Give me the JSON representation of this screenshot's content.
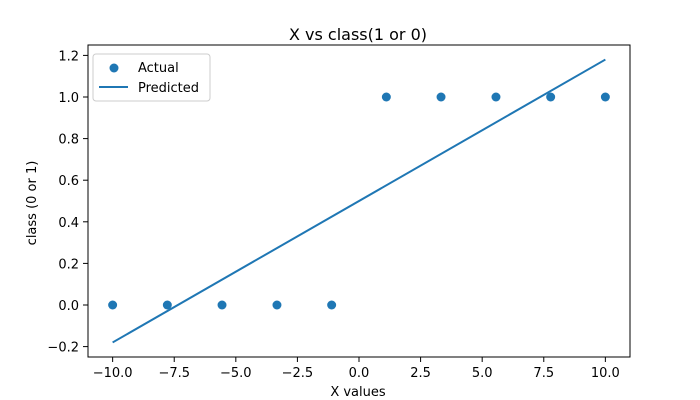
{
  "chart_data": {
    "type": "scatter",
    "title": "X vs class(1 or 0)",
    "xlabel": "X values",
    "ylabel": "class (0 or 1)",
    "xlim": [
      -11.0,
      11.0
    ],
    "ylim": [
      -0.25,
      1.25
    ],
    "xticks": [
      -10.0,
      -7.5,
      -5.0,
      -2.5,
      0.0,
      2.5,
      5.0,
      7.5,
      10.0
    ],
    "xtick_labels": [
      "−10.0",
      "−7.5",
      "−5.0",
      "−2.5",
      "0.0",
      "2.5",
      "5.0",
      "7.5",
      "10.0"
    ],
    "yticks": [
      -0.2,
      0.0,
      0.2,
      0.4,
      0.6,
      0.8,
      1.0,
      1.2
    ],
    "ytick_labels": [
      "−0.2",
      "0.0",
      "0.2",
      "0.4",
      "0.6",
      "0.8",
      "1.0",
      "1.2"
    ],
    "grid": false,
    "legend_position": "upper-left",
    "color": "#1f77b4",
    "series": [
      {
        "name": "Actual",
        "kind": "scatter",
        "x": [
          -10.0,
          -7.78,
          -5.56,
          -3.33,
          -1.11,
          1.11,
          3.33,
          5.56,
          7.78,
          10.0
        ],
        "y": [
          0,
          0,
          0,
          0,
          0,
          1,
          1,
          1,
          1,
          1
        ]
      },
      {
        "name": "Predicted",
        "kind": "line",
        "x": [
          -10.0,
          10.0
        ],
        "y": [
          -0.18,
          1.18
        ]
      }
    ]
  }
}
